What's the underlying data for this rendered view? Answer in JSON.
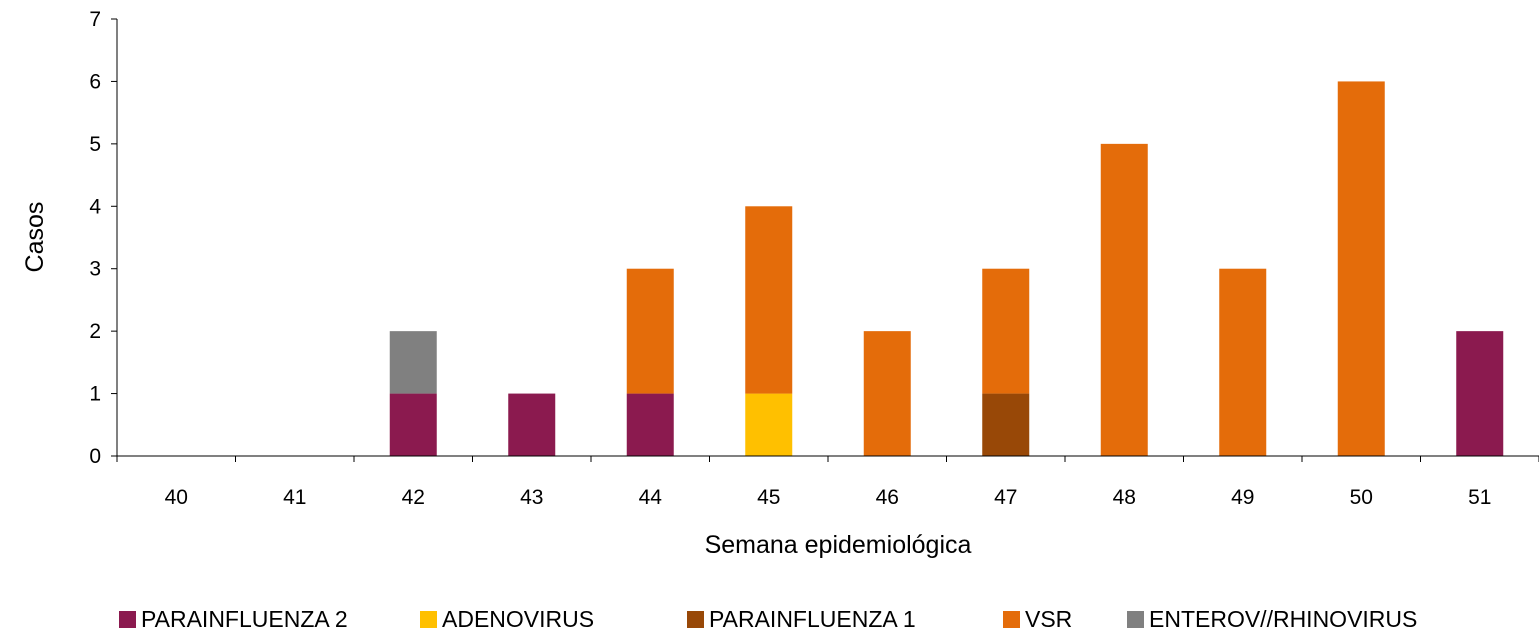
{
  "chart_data": {
    "type": "bar",
    "stacked": true,
    "title": "",
    "xlabel": "Semana epidemiológica",
    "ylabel": "Casos",
    "ylim": [
      0,
      7
    ],
    "yticks": [
      "0",
      "1",
      "2",
      "3",
      "4",
      "5",
      "6",
      "7"
    ],
    "grid": false,
    "legend_position": "bottom",
    "categories": [
      "40",
      "41",
      "42",
      "43",
      "44",
      "45",
      "46",
      "47",
      "48",
      "49",
      "50",
      "51"
    ],
    "series": [
      {
        "name": "PARAINFLUENZA 2",
        "color": "#8B1A4F",
        "values": [
          0,
          0,
          1,
          1,
          1,
          0,
          0,
          0,
          0,
          0,
          0,
          2
        ]
      },
      {
        "name": "ADENOVIRUS",
        "color": "#FFC000",
        "values": [
          0,
          0,
          0,
          0,
          0,
          1,
          0,
          0,
          0,
          0,
          0,
          0
        ]
      },
      {
        "name": "PARAINFLUENZA 1",
        "color": "#984807",
        "values": [
          0,
          0,
          0,
          0,
          0,
          0,
          0,
          1,
          0,
          0,
          0,
          0
        ]
      },
      {
        "name": "VSR",
        "color": "#E46C0A",
        "values": [
          0,
          0,
          0,
          0,
          2,
          3,
          2,
          2,
          5,
          3,
          6,
          0
        ]
      },
      {
        "name": "ENTEROV//RHINOVIRUS",
        "color": "#808080",
        "values": [
          0,
          0,
          1,
          0,
          0,
          0,
          0,
          0,
          0,
          0,
          0,
          0
        ]
      }
    ]
  }
}
